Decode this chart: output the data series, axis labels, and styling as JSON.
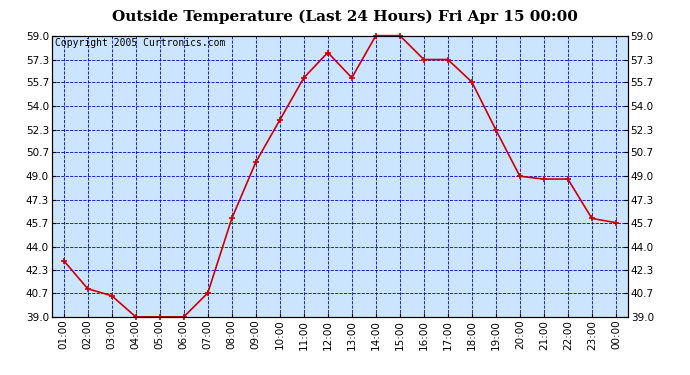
{
  "title": "Outside Temperature (Last 24 Hours) Fri Apr 15 00:00",
  "copyright": "Copyright 2005 Curtronics.com",
  "x_labels": [
    "01:00",
    "02:00",
    "03:00",
    "04:00",
    "05:00",
    "06:00",
    "07:00",
    "08:00",
    "09:00",
    "10:00",
    "11:00",
    "12:00",
    "13:00",
    "14:00",
    "15:00",
    "16:00",
    "17:00",
    "18:00",
    "19:00",
    "20:00",
    "21:00",
    "22:00",
    "23:00",
    "00:00"
  ],
  "y_values": [
    43.0,
    41.0,
    40.5,
    39.0,
    39.0,
    39.0,
    40.7,
    46.0,
    50.0,
    53.0,
    56.0,
    57.8,
    56.0,
    59.0,
    59.0,
    57.3,
    57.3,
    55.7,
    52.3,
    49.0,
    48.8,
    48.8,
    46.0,
    45.7
  ],
  "ylim": [
    39.0,
    59.0
  ],
  "yticks": [
    39.0,
    40.7,
    42.3,
    44.0,
    45.7,
    47.3,
    49.0,
    50.7,
    52.3,
    54.0,
    55.7,
    57.3,
    59.0
  ],
  "line_color": "#cc0000",
  "marker": "+",
  "marker_size": 5,
  "marker_color": "#cc0000",
  "bg_color": "#cce5ff",
  "grid_color": "#0000cc",
  "grid_style": "--",
  "title_fontsize": 11,
  "copyright_fontsize": 7,
  "tick_fontsize": 7.5,
  "fig_bg_color": "#ffffff"
}
